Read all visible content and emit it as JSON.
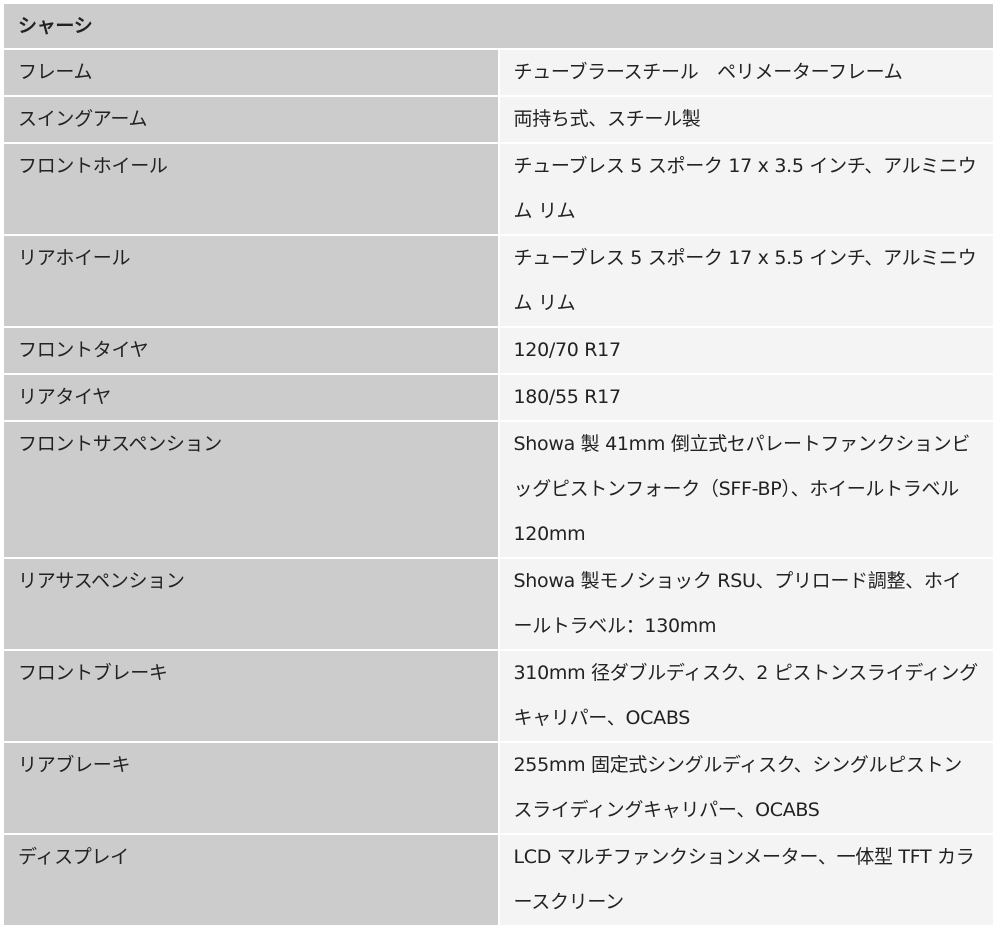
{
  "section_title": "シャーシ",
  "rows": [
    {
      "label": "フレーム",
      "value": "チューブラースチール　ペリメーターフレーム"
    },
    {
      "label": "スイングアーム",
      "value": "両持ち式、スチール製"
    },
    {
      "label": "フロントホイール",
      "value": "チューブレス 5 スポーク 17 x 3.5 インチ、アルミニウム リム"
    },
    {
      "label": "リアホイール",
      "value": "チューブレス 5 スポーク 17 x 5.5 インチ、アルミニウム リム"
    },
    {
      "label": "フロントタイヤ",
      "value": "120/70 R17"
    },
    {
      "label": "リアタイヤ",
      "value": "180/55 R17"
    },
    {
      "label": "フロントサスペンション",
      "value": "Showa 製 41mm 倒立式セパレートファンクションビッグピストンフォーク（SFF-BP）、ホイールトラベル 120mm"
    },
    {
      "label": "リアサスペンション",
      "value": "Showa 製モノショック RSU、プリロード調整、ホイールトラベル：130mm"
    },
    {
      "label": "フロントブレーキ",
      "value": "310mm 径ダブルディスク、2 ピストンスライディングキャリパー、OCABS"
    },
    {
      "label": "リアブレーキ",
      "value": "255mm 固定式シングルディスク、シングルピストンスライディングキャリパー、OCABS"
    },
    {
      "label": "ディスプレイ",
      "value": "LCD マルチファンクションメーター、一体型 TFT カラースクリーン"
    }
  ]
}
